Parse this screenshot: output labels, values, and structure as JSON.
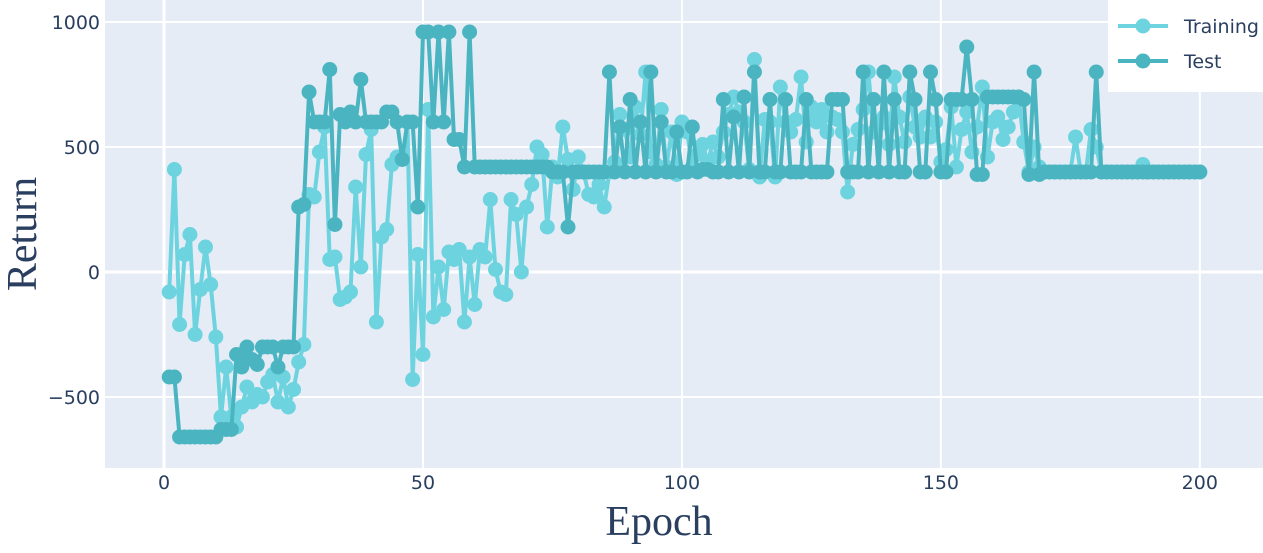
{
  "chart_data": {
    "type": "line",
    "x_label": "Epoch",
    "y_label": "Return",
    "x": [
      1,
      2,
      3,
      4,
      5,
      6,
      7,
      8,
      9,
      10,
      11,
      12,
      13,
      14,
      15,
      16,
      17,
      18,
      19,
      20,
      21,
      22,
      23,
      24,
      25,
      26,
      27,
      28,
      29,
      30,
      31,
      32,
      33,
      34,
      35,
      36,
      37,
      38,
      39,
      40,
      41,
      42,
      43,
      44,
      45,
      46,
      47,
      48,
      49,
      50,
      51,
      52,
      53,
      54,
      55,
      56,
      57,
      58,
      59,
      60,
      61,
      62,
      63,
      64,
      65,
      66,
      67,
      68,
      69,
      70,
      71,
      72,
      73,
      74,
      75,
      76,
      77,
      78,
      79,
      80,
      81,
      82,
      83,
      84,
      85,
      86,
      87,
      88,
      89,
      90,
      91,
      92,
      93,
      94,
      95,
      96,
      97,
      98,
      99,
      100,
      101,
      102,
      103,
      104,
      105,
      106,
      107,
      108,
      109,
      110,
      111,
      112,
      113,
      114,
      115,
      116,
      117,
      118,
      119,
      120,
      121,
      122,
      123,
      124,
      125,
      126,
      127,
      128,
      129,
      130,
      131,
      132,
      133,
      134,
      135,
      136,
      137,
      138,
      139,
      140,
      141,
      142,
      143,
      144,
      145,
      146,
      147,
      148,
      149,
      150,
      151,
      152,
      153,
      154,
      155,
      156,
      157,
      158,
      159,
      160,
      161,
      162,
      163,
      164,
      165,
      166,
      167,
      168,
      169,
      170,
      171,
      172,
      173,
      174,
      175,
      176,
      177,
      178,
      179,
      180,
      181,
      182,
      183,
      184,
      185,
      186,
      187,
      188,
      189,
      190,
      191,
      192,
      193,
      194,
      195,
      196,
      197,
      198,
      199,
      200
    ],
    "series": [
      {
        "name": "Training",
        "color": "#6dd3df",
        "values": [
          -80,
          410,
          -210,
          70,
          150,
          -250,
          -70,
          100,
          -50,
          -260,
          -580,
          -380,
          -580,
          -620,
          -540,
          -460,
          -520,
          -490,
          -500,
          -440,
          -410,
          -520,
          -420,
          -540,
          -470,
          -360,
          -290,
          310,
          300,
          480,
          580,
          50,
          60,
          -110,
          -100,
          -80,
          340,
          20,
          470,
          570,
          -200,
          140,
          170,
          430,
          460,
          460,
          600,
          -430,
          70,
          -330,
          650,
          -180,
          20,
          -150,
          80,
          50,
          90,
          -200,
          60,
          -130,
          90,
          60,
          290,
          10,
          -80,
          -90,
          290,
          230,
          0,
          260,
          350,
          500,
          470,
          180,
          420,
          380,
          580,
          450,
          330,
          460,
          400,
          310,
          300,
          350,
          260,
          400,
          440,
          630,
          570,
          460,
          660,
          550,
          800,
          480,
          430,
          650,
          420,
          560,
          390,
          600,
          560,
          420,
          470,
          510,
          440,
          520,
          460,
          560,
          630,
          700,
          640,
          600,
          410,
          850,
          380,
          610,
          600,
          380,
          740,
          600,
          560,
          610,
          780,
          520,
          660,
          600,
          650,
          560,
          620,
          610,
          560,
          320,
          510,
          570,
          650,
          800,
          560,
          590,
          620,
          510,
          780,
          620,
          520,
          700,
          580,
          540,
          620,
          540,
          600,
          440,
          490,
          660,
          420,
          570,
          640,
          480,
          580,
          740,
          460,
          600,
          620,
          530,
          580,
          640,
          700,
          520,
          400,
          500,
          420,
          400,
          400,
          400,
          400,
          400,
          400,
          540,
          400,
          400,
          570,
          500,
          400,
          400,
          400,
          400,
          400,
          400,
          400,
          400,
          430,
          400,
          400,
          400,
          400,
          400,
          400,
          400,
          400,
          400,
          400,
          400
        ]
      },
      {
        "name": "Test",
        "color": "#4ab5c0",
        "values": [
          -420,
          -420,
          -660,
          -660,
          -660,
          -660,
          -660,
          -660,
          -660,
          -660,
          -630,
          -630,
          -630,
          -330,
          -380,
          -300,
          -350,
          -370,
          -300,
          -300,
          -300,
          -380,
          -300,
          -300,
          -300,
          260,
          270,
          720,
          600,
          600,
          600,
          810,
          190,
          630,
          600,
          640,
          600,
          770,
          600,
          600,
          600,
          600,
          640,
          640,
          600,
          450,
          600,
          600,
          260,
          960,
          960,
          600,
          960,
          600,
          960,
          530,
          530,
          420,
          960,
          420,
          420,
          420,
          420,
          420,
          420,
          420,
          420,
          420,
          420,
          420,
          420,
          420,
          420,
          420,
          400,
          400,
          400,
          180,
          400,
          400,
          400,
          400,
          400,
          400,
          400,
          800,
          400,
          580,
          400,
          690,
          400,
          600,
          400,
          800,
          400,
          600,
          400,
          400,
          560,
          400,
          400,
          580,
          400,
          410,
          410,
          400,
          400,
          690,
          400,
          620,
          400,
          700,
          400,
          800,
          400,
          400,
          690,
          400,
          400,
          690,
          400,
          400,
          400,
          690,
          400,
          400,
          400,
          400,
          690,
          690,
          690,
          400,
          400,
          400,
          800,
          400,
          690,
          400,
          800,
          400,
          690,
          400,
          400,
          800,
          690,
          400,
          400,
          800,
          690,
          400,
          400,
          690,
          690,
          690,
          900,
          690,
          390,
          390,
          700,
          700,
          700,
          700,
          700,
          700,
          700,
          690,
          390,
          800,
          390,
          400,
          400,
          400,
          400,
          400,
          400,
          400,
          400,
          400,
          400,
          800,
          400,
          400,
          400,
          400,
          400,
          400,
          400,
          400,
          400,
          400,
          400,
          400,
          400,
          400,
          400,
          400,
          400,
          400,
          400,
          400
        ]
      }
    ],
    "xlim": [
      -11.4,
      212.2
    ],
    "xticks": [
      0,
      50,
      100,
      150,
      200
    ],
    "ylim": [
      -784,
      1088
    ],
    "yticks": [
      {
        "value": -500,
        "label": "−500"
      },
      0,
      500,
      1000
    ],
    "grid": true,
    "legend": "top-right"
  }
}
